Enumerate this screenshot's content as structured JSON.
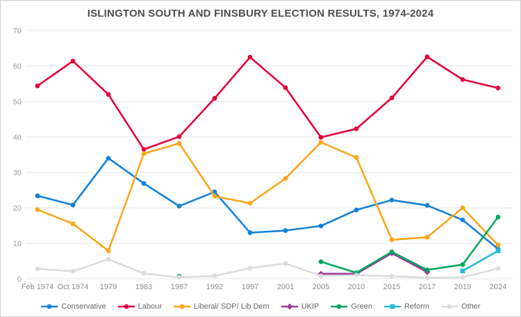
{
  "title": "ISLINGTON SOUTH AND FINSBURY ELECTION RESULTS, 1974-2024",
  "chart_data": {
    "type": "line",
    "title": "ISLINGTON SOUTH AND FINSBURY ELECTION RESULTS, 1974-2024",
    "xlabel": "",
    "ylabel": "",
    "ylim": [
      0,
      70
    ],
    "yticks": [
      0,
      10,
      20,
      30,
      40,
      50,
      60,
      70
    ],
    "grid": true,
    "legend_position": "bottom",
    "categories": [
      "Feb 1974",
      "Oct 1974",
      "1979",
      "1983",
      "1987",
      "1992",
      "1997",
      "2001",
      "2005",
      "2010",
      "2015",
      "2017",
      "2019",
      "2024"
    ],
    "series": [
      {
        "name": "Conservative",
        "color": "#1381d9",
        "marker": "circle",
        "values": [
          23.4,
          20.8,
          34.0,
          26.9,
          20.5,
          24.5,
          13.0,
          13.6,
          14.9,
          19.4,
          22.2,
          20.7,
          16.6,
          8.4
        ]
      },
      {
        "name": "Labour",
        "color": "#e4003b",
        "marker": "circle",
        "values": [
          54.4,
          61.4,
          52.0,
          36.5,
          40.1,
          50.9,
          62.5,
          53.9,
          39.9,
          42.3,
          51.0,
          62.6,
          56.2,
          53.8
        ]
      },
      {
        "name": "Liberal/ SDP/ Lib Dem",
        "color": "#faa61a",
        "marker": "circle",
        "values": [
          19.5,
          15.5,
          7.9,
          35.3,
          38.2,
          23.3,
          21.3,
          28.3,
          38.5,
          34.2,
          11.0,
          11.7,
          20.0,
          9.5
        ]
      },
      {
        "name": "UKIP",
        "color": "#9c3a96",
        "marker": "diamond",
        "values": [
          null,
          null,
          null,
          null,
          null,
          null,
          null,
          null,
          1.4,
          1.4,
          7.2,
          1.9,
          null,
          null
        ]
      },
      {
        "name": "Green",
        "color": "#00a85e",
        "marker": "circle",
        "values": [
          null,
          null,
          null,
          null,
          0.7,
          null,
          null,
          null,
          4.8,
          1.7,
          7.6,
          2.5,
          4.0,
          17.4
        ]
      },
      {
        "name": "Reform",
        "color": "#29b8d8",
        "marker": "square",
        "values": [
          null,
          null,
          null,
          null,
          null,
          null,
          null,
          null,
          null,
          null,
          null,
          null,
          2.2,
          7.9
        ]
      },
      {
        "name": "Other",
        "color": "#dcdcdc",
        "marker": "circle",
        "values": [
          2.8,
          2.1,
          5.5,
          1.5,
          0.4,
          0.8,
          3.0,
          4.3,
          0.8,
          1.0,
          0.7,
          0.3,
          0.4,
          2.9
        ]
      }
    ]
  }
}
